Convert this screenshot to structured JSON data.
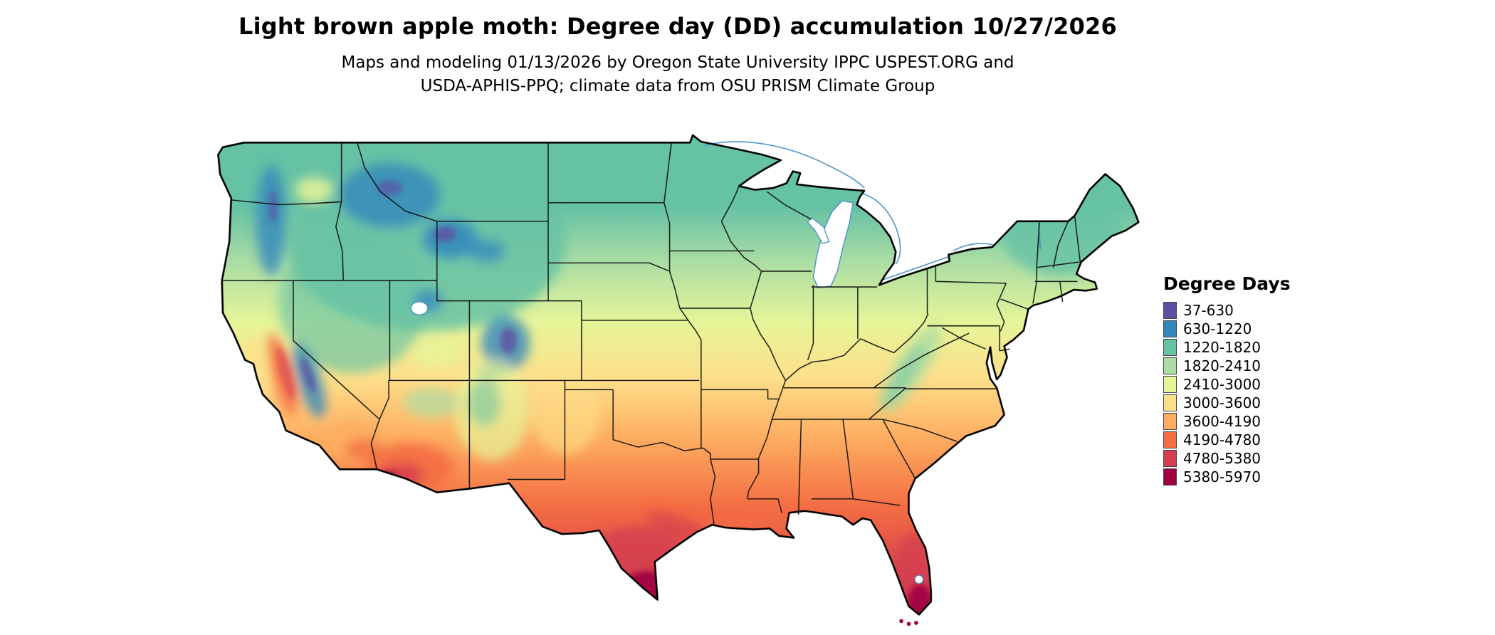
{
  "header": {
    "title": "Light brown apple moth: Degree day (DD) accumulation 10/27/2026",
    "subtitle_line1": "Maps and modeling 01/13/2026 by Oregon State University IPPC USPEST.ORG and",
    "subtitle_line2": "USDA-APHIS-PPQ; climate data from OSU PRISM Climate Group"
  },
  "legend": {
    "title": "Degree Days",
    "classes": [
      {
        "label": "37-630",
        "color": "#5e4fa2"
      },
      {
        "label": "630-1220",
        "color": "#3288bd"
      },
      {
        "label": "1220-1820",
        "color": "#66c2a5"
      },
      {
        "label": "1820-2410",
        "color": "#abdda4"
      },
      {
        "label": "2410-3000",
        "color": "#e6f598"
      },
      {
        "label": "3000-3600",
        "color": "#fee08b"
      },
      {
        "label": "3600-4190",
        "color": "#fdae61"
      },
      {
        "label": "4190-4780",
        "color": "#f46d43"
      },
      {
        "label": "4780-5380",
        "color": "#d53e4f"
      },
      {
        "label": "5380-5970",
        "color": "#9e0142"
      }
    ]
  },
  "map": {
    "region": "Continental United States",
    "outline_color": "#000000",
    "state_border_color": "#111111",
    "lake_line_color": "#4a90c4",
    "background": "#ffffff"
  },
  "chart_data": {
    "type": "choropleth_map",
    "subject": "Degree day (DD) accumulation for light brown apple moth",
    "region": "Continental United States",
    "map_date": "10/27/2026",
    "model_run_date": "01/13/2026",
    "unit": "degree days",
    "bins": [
      "37-630",
      "630-1220",
      "1220-1820",
      "1820-2410",
      "2410-3000",
      "3000-3600",
      "3600-4190",
      "4190-4780",
      "4780-5380",
      "5380-5970"
    ],
    "palette": [
      "#5e4fa2",
      "#3288bd",
      "#66c2a5",
      "#abdda4",
      "#e6f598",
      "#fee08b",
      "#fdae61",
      "#f46d43",
      "#d53e4f",
      "#9e0142"
    ],
    "legend_position": "right",
    "regional_readings": {
      "high_rockies_sierra_cascades": "37-1220",
      "northern_tier_MT_ND_MN_WI_MI_new_england": "1220-1820",
      "central_plains_IA_NE_OH_appalachians": "1820-2410",
      "mid_latitudes_KS_MO_KY_VA": "2410-3600",
      "southern_plains_OK_TN_NC_coastal_CA": "3000-3600",
      "deep_south_AR_MS_AL_GA_SC_north_TX": "3600-4780",
      "gulf_coast_LA_central_TX_AZ_deserts": "4190-5380",
      "south_texas_south_florida_sw_arizona_low_desert": "4780-5970"
    }
  }
}
